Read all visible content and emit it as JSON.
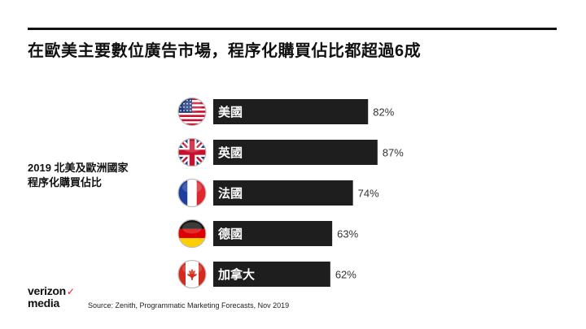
{
  "headline": "在歐美主要數位廣告市場，程序化購買佔比都超過6成",
  "side_label": {
    "line1": "2019 北美及歐洲國家",
    "line2": "程序化購買佔比"
  },
  "brand": {
    "line1": "verizon",
    "check": "✓",
    "line2": "media"
  },
  "source": "Source: Zenith, Programmatic Marketing Forecasts, Nov 2019",
  "colors": {
    "bar": "#1e1e1e",
    "bar_text": "#ffffff",
    "value_text": "#333333"
  },
  "chart_data": {
    "type": "bar",
    "orientation": "horizontal",
    "unit": "%",
    "categories": [
      "美國",
      "英國",
      "法國",
      "德國",
      "加拿大"
    ],
    "values": [
      82,
      87,
      74,
      63,
      62
    ],
    "flags": [
      "us-flag-icon",
      "uk-flag-icon",
      "france-flag-icon",
      "germany-flag-icon",
      "canada-flag-icon"
    ],
    "title": "",
    "xlabel": "",
    "ylabel": ""
  }
}
